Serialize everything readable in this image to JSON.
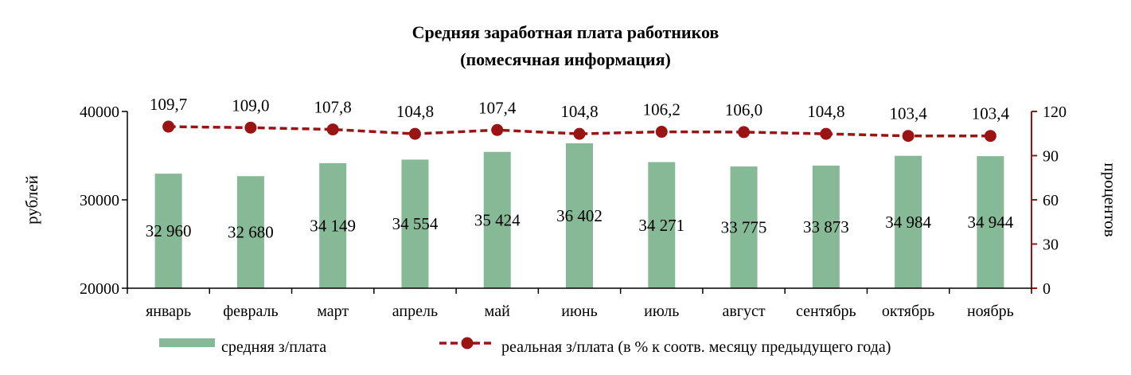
{
  "chart_data": {
    "type": "bar+line",
    "title": "Средняя заработная плата работников",
    "subtitle": "(помесячная информация)",
    "categories": [
      "январь",
      "февраль",
      "март",
      "апрель",
      "май",
      "июнь",
      "июль",
      "август",
      "сентябрь",
      "октябрь",
      "ноябрь"
    ],
    "series": [
      {
        "name": "средняя з/плата",
        "type": "bar",
        "axis": "left",
        "color": "#86b995",
        "values": [
          32960,
          32680,
          34149,
          34554,
          35424,
          36402,
          34271,
          33775,
          33873,
          34984,
          34944
        ],
        "labels": [
          "32 960",
          "32 680",
          "34 149",
          "34 554",
          "35 424",
          "36 402",
          "34 271",
          "33 775",
          "33 873",
          "34 984",
          "34 944"
        ]
      },
      {
        "name": "реальная з/плата (в % к соотв. месяцу предыдущего года)",
        "type": "line",
        "axis": "right",
        "color": "#9b1414",
        "style": "dashed",
        "marker": "circle",
        "values": [
          109.7,
          109.0,
          107.8,
          104.8,
          107.4,
          104.8,
          106.2,
          106.0,
          104.8,
          103.4,
          103.4
        ],
        "labels": [
          "109,7",
          "109,0",
          "107,8",
          "104,8",
          "107,4",
          "104,8",
          "106,2",
          "106,0",
          "104,8",
          "103,4",
          "103,4"
        ]
      }
    ],
    "y_left": {
      "label": "рублей",
      "range": [
        20000,
        40000
      ],
      "ticks": [
        "20000",
        "30000",
        "40000"
      ],
      "tick_values": [
        20000,
        30000,
        40000
      ],
      "color": "#000000"
    },
    "y_right": {
      "label": "процентов",
      "range": [
        0,
        120
      ],
      "ticks": [
        "0",
        "30",
        "60",
        "90",
        "120"
      ],
      "tick_values": [
        0,
        30,
        60,
        90,
        120
      ],
      "color": "#9b1414"
    },
    "grid": false,
    "legend_position": "bottom"
  }
}
